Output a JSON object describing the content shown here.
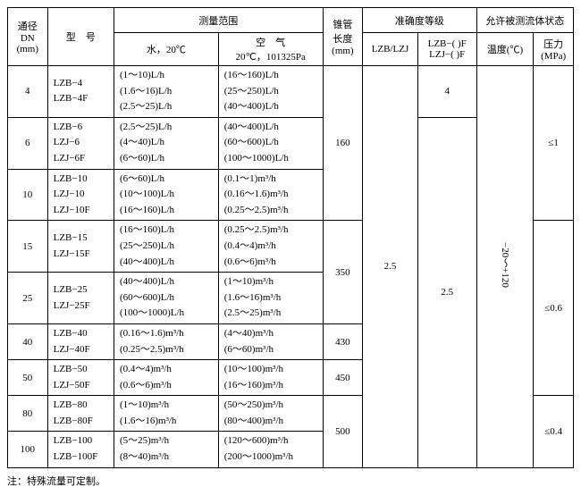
{
  "headers": {
    "dn": "通径\nDN\n(mm)",
    "model": "型　号",
    "range": "测量范围",
    "water": "水，20℃",
    "air": "空　气\n20℃，101325Pa",
    "tube": "锥管\n长度\n(mm)",
    "accuracy": "准确度等级",
    "acc1": "LZB/LZJ",
    "acc2": "LZB−( )F\nLZJ−( )F",
    "fluid": "允许被测流体状态",
    "temp": "温度(℃)",
    "press": "压力\n(MPa)"
  },
  "rows": {
    "r4": {
      "dn": "4",
      "model": "LZB−4\nLZB−4F",
      "water": "(1～10)L/h\n(1.6～16)L/h\n(2.5～25)L/h",
      "air": "(16～160)L/h\n(25～250)L/h\n(40～400)L/h"
    },
    "r6": {
      "dn": "6",
      "model": "LZB−6\nLZJ−6\nLZJ−6F",
      "water": "(2.5～25)L/h\n(4～40)L/h\n(6～60)L/h",
      "air": "(40～400)L/h\n(60～600)L/h\n(100～1000)L/h"
    },
    "r10": {
      "dn": "10",
      "model": "LZB−10\nLZJ−10\nLZJ−10F",
      "water": "(6～60)L/h\n(10～100)L/h\n(16～160)L/h",
      "air": "(0.1～1)m³/h\n(0.16～1.6)m³/h\n(0.25～2.5)m³/h"
    },
    "r15": {
      "dn": "15",
      "model": "LZB−15\nLZJ−15F",
      "water": "(16～160)L/h\n(25～250)L/h\n(40～400)L/h",
      "air": "(0.25～2.5)m³/h\n(0.4～4)m³/h\n(0.6～6)m³/h"
    },
    "r25": {
      "dn": "25",
      "model": "LZB−25\nLZJ−25F",
      "water": "(40～400)L/h\n(60～600)L/h\n(100～1000)L/h",
      "air": "(1～10)m³/h\n(1.6～16)m³/h\n(2.5～25)m³/h"
    },
    "r40": {
      "dn": "40",
      "model": "LZB−40\nLZJ−40F",
      "water": "(0.16～1.6)m³/h\n(0.25～2.5)m³/h",
      "air": "(4～40)m³/h\n(6～60)m³/h"
    },
    "r50": {
      "dn": "50",
      "model": "LZB−50\nLZJ−50F",
      "water": "(0.4～4)m³/h\n(0.6～6)m³/h",
      "air": "(10～100)m³/h\n(16～160)m³/h"
    },
    "r80": {
      "dn": "80",
      "model": "LZB−80\nLZB−80F",
      "water": "(1～10)m³/h\n(1.6～16)m³/h",
      "air": "(50～250)m³/h\n(80～400)m³/h"
    },
    "r100": {
      "dn": "100",
      "model": "LZB−100\nLZB−100F",
      "water": "(5～25)m³/h\n(8～40)m³/h",
      "air": "(120～600)m³/h\n(200～1000)m³/h"
    }
  },
  "tube": {
    "t160": "160",
    "t350": "350",
    "t430": "430",
    "t450": "450",
    "t500": "500"
  },
  "acc": {
    "a25": "2.5",
    "b4": "4",
    "b25": "2.5"
  },
  "temp": "−20～+120",
  "press": {
    "p1": "≤1",
    "p06": "≤0.6",
    "p04": "≤0.4"
  },
  "note": "注：特殊流量可定制。"
}
